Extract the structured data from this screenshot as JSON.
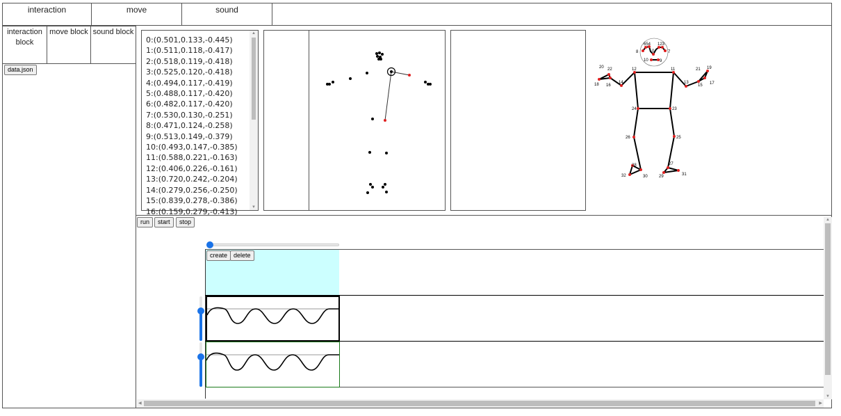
{
  "tabs": [
    "interaction",
    "move",
    "sound"
  ],
  "block_tabs": [
    "interaction block",
    "move block",
    "sound block"
  ],
  "file_button": "data.json",
  "coords": [
    "0:(0.501,0.133,-0.445)",
    "1:(0.511,0.118,-0.417)",
    "2:(0.518,0.119,-0.418)",
    "3:(0.525,0.120,-0.418)",
    "4:(0.494,0.117,-0.419)",
    "5:(0.488,0.117,-0.420)",
    "6:(0.482,0.117,-0.420)",
    "7:(0.530,0.130,-0.251)",
    "8:(0.471,0.124,-0.258)",
    "9:(0.513,0.149,-0.379)",
    "10:(0.493,0.147,-0.385)",
    "11:(0.588,0.221,-0.163)",
    "12:(0.406,0.226,-0.161)",
    "13:(0.720,0.242,-0.204)",
    "14:(0.279,0.256,-0.250)",
    "15:(0.839,0.278,-0.386)",
    "16:(0.159,0.279,-0.413)"
  ],
  "skeleton_labels": {
    "head_right": "654",
    "head_left": "123",
    "p0": "0",
    "p8": "8",
    "p7": "7",
    "p10": "10",
    "p9": "9",
    "p11": "11",
    "p12": "12",
    "p13": "13",
    "p14": "14",
    "p15": "15",
    "p16": "16",
    "p17": "17",
    "p18": "18",
    "p19": "19",
    "p20": "20",
    "p21": "21",
    "p22": "22",
    "p23": "23",
    "p24": "24",
    "p25": "25",
    "p26": "26",
    "p27": "27",
    "p28": "28",
    "p29": "29",
    "p30": "30",
    "p31": "31",
    "p32": "32"
  },
  "controls": {
    "run": "run",
    "start": "start",
    "stop": "stop"
  },
  "timeline": {
    "create": "create",
    "delete": "delete",
    "slider_value": 0
  },
  "tracks": [
    {
      "level": 0.7,
      "border": "#000000"
    },
    {
      "level": 0.7,
      "border": "#1a7a1a"
    }
  ],
  "colors": {
    "accent": "#1a73e8",
    "create_area": "#ccffff",
    "joint_red": "#e02020"
  }
}
